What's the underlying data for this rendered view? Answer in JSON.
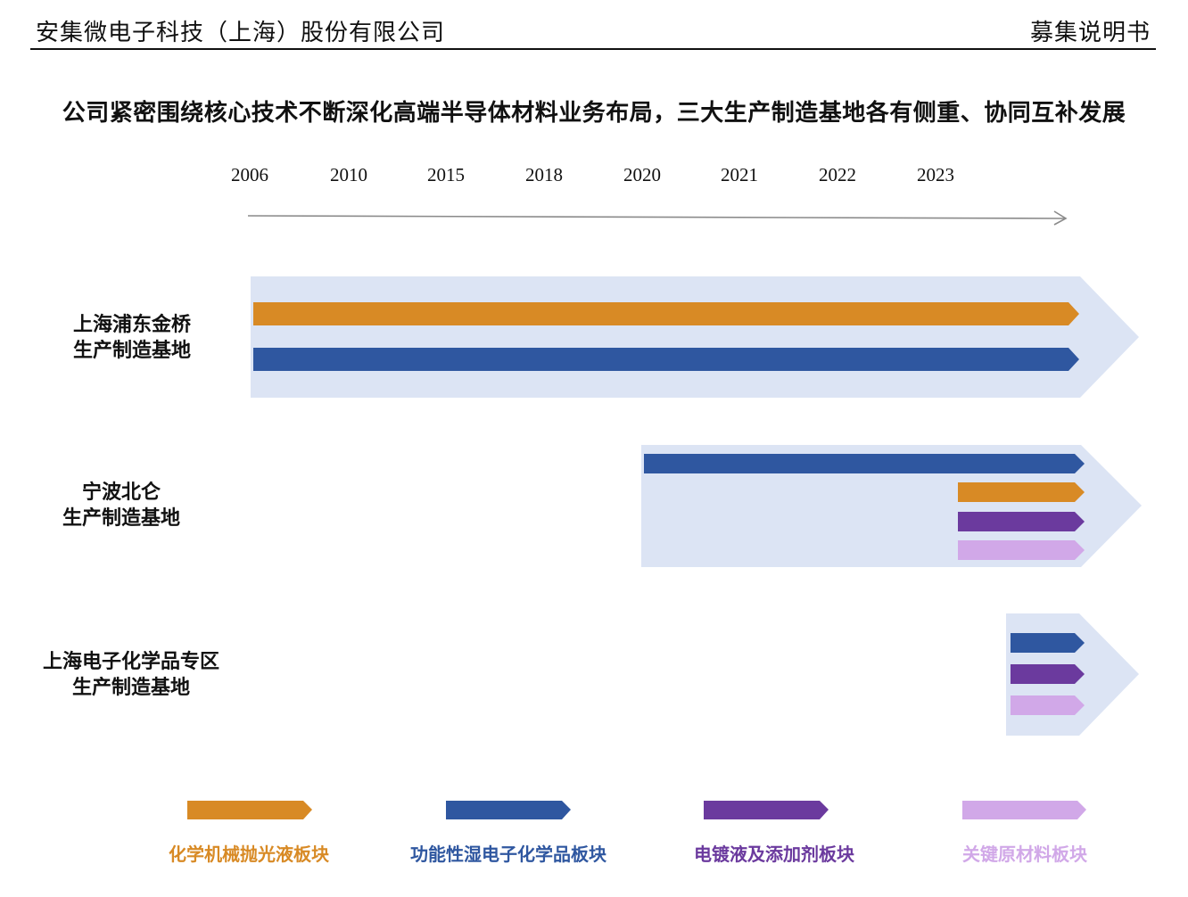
{
  "header": {
    "company": "安集微电子科技（上海）股份有限公司",
    "doc_type": "募集说明书"
  },
  "title": "公司紧密围绕核心技术不断深化高端半导体材料业务布局，三大生产制造基地各有侧重、协同互补发展",
  "timeline": {
    "years": [
      "2006",
      "2010",
      "2015",
      "2018",
      "2020",
      "2021",
      "2022",
      "2023"
    ]
  },
  "colors": {
    "cmp": "#D88A25",
    "wet": "#2F57A0",
    "plating": "#6B3A9E",
    "raw": "#D1A8E8",
    "site_bg": "#DCE4F4",
    "arrow": "#8A8A8A"
  },
  "sites": [
    {
      "line1": "上海浦东金桥",
      "line2": "生产制造基地",
      "start_year": "2006",
      "segments": [
        {
          "segment": "cmp",
          "start_year": "2006"
        },
        {
          "segment": "wet",
          "start_year": "2006"
        }
      ]
    },
    {
      "line1": "宁波北仑",
      "line2": "生产制造基地",
      "start_year": "2020",
      "segments": [
        {
          "segment": "wet",
          "start_year": "2020"
        },
        {
          "segment": "cmp",
          "start_year": "2023"
        },
        {
          "segment": "plating",
          "start_year": "2023"
        },
        {
          "segment": "raw",
          "start_year": "2023"
        }
      ]
    },
    {
      "line1": "上海电子化学品专区",
      "line2": "生产制造基地",
      "start_year": "2023",
      "segments": [
        {
          "segment": "wet",
          "start_year": "2023"
        },
        {
          "segment": "plating",
          "start_year": "2023"
        },
        {
          "segment": "raw",
          "start_year": "2023"
        }
      ]
    }
  ],
  "legend": [
    {
      "key": "cmp",
      "label": "化学机械抛光液板块"
    },
    {
      "key": "wet",
      "label": "功能性湿电子化学品板块"
    },
    {
      "key": "plating",
      "label": "电镀液及添加剂板块"
    },
    {
      "key": "raw",
      "label": "关键原材料板块"
    }
  ]
}
